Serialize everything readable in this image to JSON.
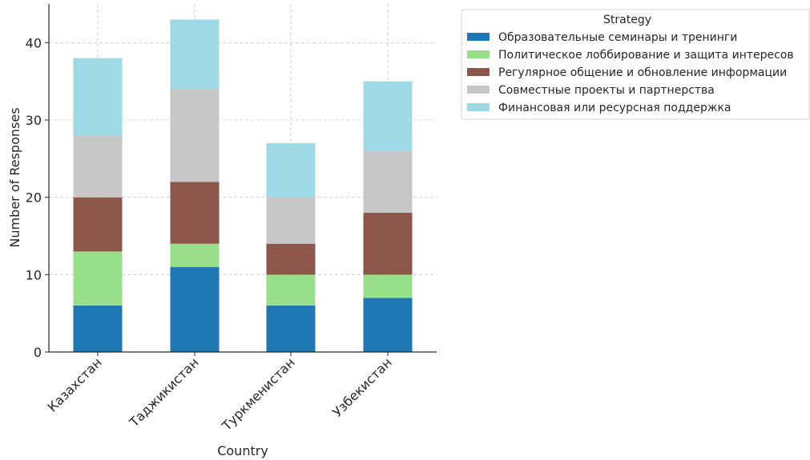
{
  "chart_data": {
    "type": "bar",
    "stacked": true,
    "xlabel": "Country",
    "ylabel": "Number of Responses",
    "ylim": [
      0,
      45
    ],
    "yticks": [
      0,
      10,
      20,
      30,
      40
    ],
    "grid": true,
    "categories": [
      "Казахстан",
      "Таджикистан",
      "Туркменистан",
      "Узбекистан"
    ],
    "legend": {
      "title": "Strategy",
      "placement": "outside-top-right"
    },
    "series": [
      {
        "name": "Образовательные семинары и тренинги",
        "color": "#1f77b4",
        "values": [
          6,
          11,
          6,
          7
        ]
      },
      {
        "name": "Политическое лоббирование и защита интересов",
        "color": "#98df8a",
        "values": [
          7,
          3,
          4,
          3
        ]
      },
      {
        "name": "Регулярное общение и обновление информации",
        "color": "#8c564b",
        "values": [
          7,
          8,
          4,
          8
        ]
      },
      {
        "name": "Совместные проекты и партнерства",
        "color": "#c7c7c7",
        "values": [
          8,
          12,
          6,
          8
        ]
      },
      {
        "name": "Финансовая или ресурсная поддержка",
        "color": "#9edae5",
        "values": [
          10,
          9,
          7,
          9
        ]
      }
    ]
  }
}
